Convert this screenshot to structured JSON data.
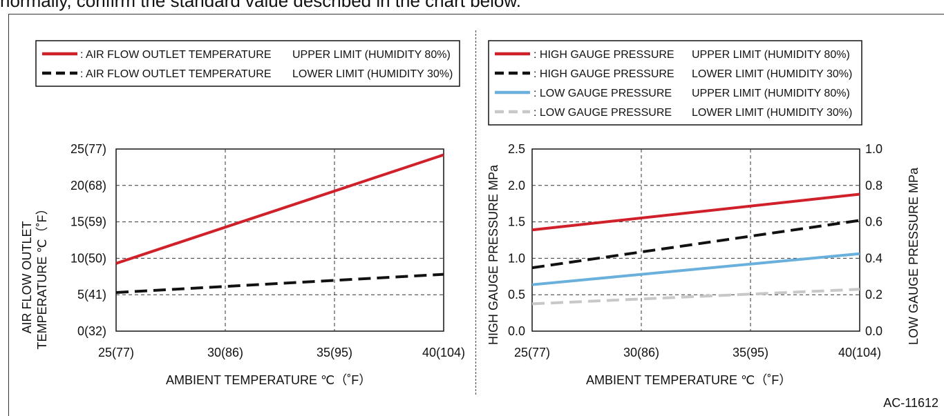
{
  "page": {
    "top_text": "normally, confirm the standard value described in the chart below.",
    "doc_code": "AC-11612"
  },
  "chart_data": [
    {
      "type": "line",
      "xlabel": "AMBIENT TEMPERATURE ℃（˚F）",
      "ylabel_lines": [
        "AIR FLOW OUTLET",
        "TEMPERATURE ℃（˚F）"
      ],
      "x_ticks": [
        "25(77)",
        "30(86)",
        "35(95)",
        "40(104)"
      ],
      "y_ticks": [
        "0(32)",
        "5(41)",
        "10(50)",
        "15(59)",
        "20(68)",
        "25(77)"
      ],
      "xlim": [
        25,
        40
      ],
      "ylim": [
        0,
        25
      ],
      "x_tick_values": [
        25,
        30,
        35,
        40
      ],
      "y_tick_values": [
        0,
        5,
        10,
        15,
        20,
        25
      ],
      "grid": true,
      "legend_position": "top",
      "series": [
        {
          "name": "AIR FLOW OUTLET TEMPERATURE",
          "limit": "UPPER LIMIT (HUMIDITY 80%)",
          "x": [
            25,
            40
          ],
          "y": [
            9.3,
            24.2
          ],
          "color": "#d0202a",
          "dash": "solid"
        },
        {
          "name": "AIR FLOW OUTLET TEMPERATURE",
          "limit": "LOWER LIMIT (HUMIDITY 30%)",
          "x": [
            25,
            40
          ],
          "y": [
            5.3,
            7.8
          ],
          "color": "#111111",
          "dash": "dashed"
        }
      ]
    },
    {
      "type": "line",
      "xlabel": "AMBIENT TEMPERATURE ℃（˚F）",
      "ylabel_left": "HIGH GAUGE PRESSURE MPa",
      "ylabel_right": "LOW GAUGE PRESSURE MPa",
      "x_ticks": [
        "25(77)",
        "30(86)",
        "35(95)",
        "40(104)"
      ],
      "y_ticks_left": [
        "0.0",
        "0.5",
        "1.0",
        "1.5",
        "2.0",
        "2.5"
      ],
      "y_ticks_right": [
        "0.0",
        "0.2",
        "0.4",
        "0.6",
        "0.8",
        "1.0"
      ],
      "xlim": [
        25,
        40
      ],
      "ylim_left": [
        0,
        2.5
      ],
      "ylim_right": [
        0,
        1.0
      ],
      "x_tick_values": [
        25,
        30,
        35,
        40
      ],
      "y_tick_values_left": [
        0,
        0.5,
        1.0,
        1.5,
        2.0,
        2.5
      ],
      "y_tick_values_right": [
        0,
        0.2,
        0.4,
        0.6,
        0.8,
        1.0
      ],
      "grid": true,
      "legend_position": "top",
      "series": [
        {
          "name": "HIGH GAUGE PRESSURE",
          "limit": "UPPER LIMIT (HUMIDITY 80%)",
          "axis": "left",
          "x": [
            25,
            40
          ],
          "y": [
            1.39,
            1.88
          ],
          "color": "#d0202a",
          "dash": "solid"
        },
        {
          "name": "HIGH GAUGE PRESSURE",
          "limit": "LOWER LIMIT (HUMIDITY 30%)",
          "axis": "left",
          "x": [
            25,
            40
          ],
          "y": [
            0.87,
            1.52
          ],
          "color": "#111111",
          "dash": "dashed"
        },
        {
          "name": "LOW GAUGE PRESSURE",
          "limit": "UPPER LIMIT (HUMIDITY 80%)",
          "axis": "right",
          "x": [
            25,
            40
          ],
          "y": [
            0.255,
            0.425
          ],
          "color": "#6ab0dc",
          "dash": "solid"
        },
        {
          "name": "LOW GAUGE PRESSURE",
          "limit": "LOWER LIMIT (HUMIDITY 30%)",
          "axis": "right",
          "x": [
            25,
            40
          ],
          "y": [
            0.15,
            0.23
          ],
          "color": "#c8c8c8",
          "dash": "dashed"
        }
      ]
    }
  ]
}
